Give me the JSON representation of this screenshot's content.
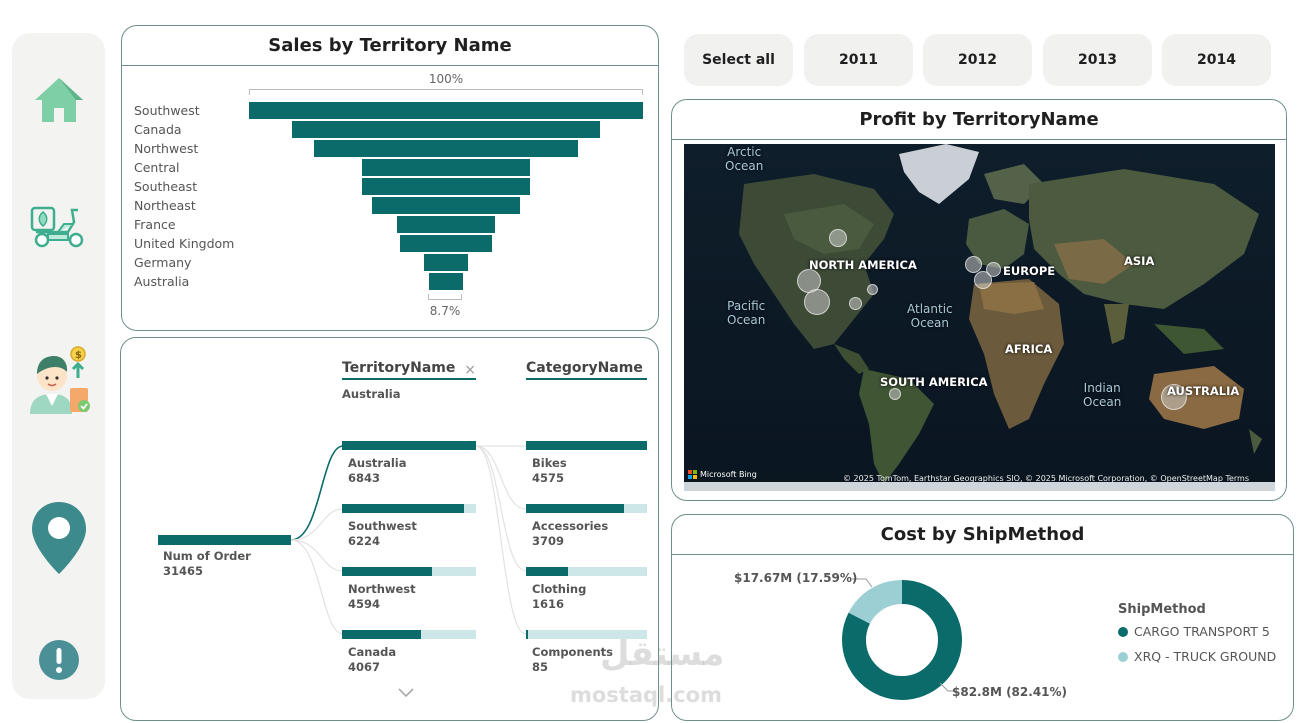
{
  "nav": {
    "items": [
      {
        "name": "home"
      },
      {
        "name": "delivery"
      },
      {
        "name": "sales-person"
      },
      {
        "name": "location"
      },
      {
        "name": "info"
      }
    ]
  },
  "years": {
    "select_all": "Select all",
    "y2011": "2011",
    "y2012": "2012",
    "y2013": "2013",
    "y2014": "2014"
  },
  "funnel": {
    "title": "Sales by Territory Name",
    "top_pct": "100%",
    "bottom_pct": "8.7%",
    "chart_data": {
      "type": "bar",
      "categories": [
        "Southwest",
        "Canada",
        "Northwest",
        "Central",
        "Southeast",
        "Northeast",
        "France",
        "United Kingdom",
        "Germany",
        "Australia"
      ],
      "values": [
        100,
        78.0,
        67.0,
        42.5,
        42.5,
        37.4,
        25.0,
        23.2,
        11.0,
        8.7
      ]
    }
  },
  "decomp": {
    "col1_title": "TerritoryName",
    "col1_filter": "Australia",
    "col2_title": "CategoryName",
    "root_label": "Num of Order",
    "root_value": "31465",
    "territories": [
      {
        "label": "Australia",
        "value": "6843",
        "fill": 100
      },
      {
        "label": "Southwest",
        "value": "6224",
        "fill": 91
      },
      {
        "label": "Northwest",
        "value": "4594",
        "fill": 67
      },
      {
        "label": "Canada",
        "value": "4067",
        "fill": 59
      }
    ],
    "categories": [
      {
        "label": "Bikes",
        "value": "4575",
        "fill": 100
      },
      {
        "label": "Accessories",
        "value": "3709",
        "fill": 81
      },
      {
        "label": "Clothing",
        "value": "1616",
        "fill": 35
      },
      {
        "label": "Components",
        "value": "85",
        "fill": 2
      }
    ]
  },
  "map": {
    "title": "Profit by TerritoryName",
    "labels": {
      "north_america": "NORTH AMERICA",
      "europe": "EUROPE",
      "asia": "ASIA",
      "africa": "AFRICA",
      "south_america": "SOUTH AMERICA",
      "australia": "AUSTRALIA"
    },
    "oceans": {
      "arctic_1": "Arctic",
      "arctic_2": "Ocean",
      "pacific_1": "Pacific",
      "pacific_2": "Ocean",
      "atlantic_1": "Atlantic",
      "atlantic_2": "Ocean",
      "indian_1": "Indian",
      "indian_2": "Ocean"
    },
    "bing": "Microsoft Bing",
    "attribution": "© 2025 TomTom, Earthstar Geographics SIO, © 2025 Microsoft Corporation, © OpenStreetMap  Terms"
  },
  "cost": {
    "title": "Cost by ShipMethod",
    "legend_title": "ShipMethod",
    "label_small": "$17.67M (17.59%)",
    "label_large": "$82.8M (82.41%)",
    "chart_data": {
      "type": "pie",
      "categories": [
        "CARGO TRANSPORT 5",
        "XRQ - TRUCK GROUND"
      ],
      "values": [
        82.41,
        17.59
      ],
      "colors": [
        "#0b6b6b",
        "#9ccfd3"
      ]
    }
  },
  "watermark": {
    "arabic": "مستقل",
    "latin": "mostaql.com"
  }
}
